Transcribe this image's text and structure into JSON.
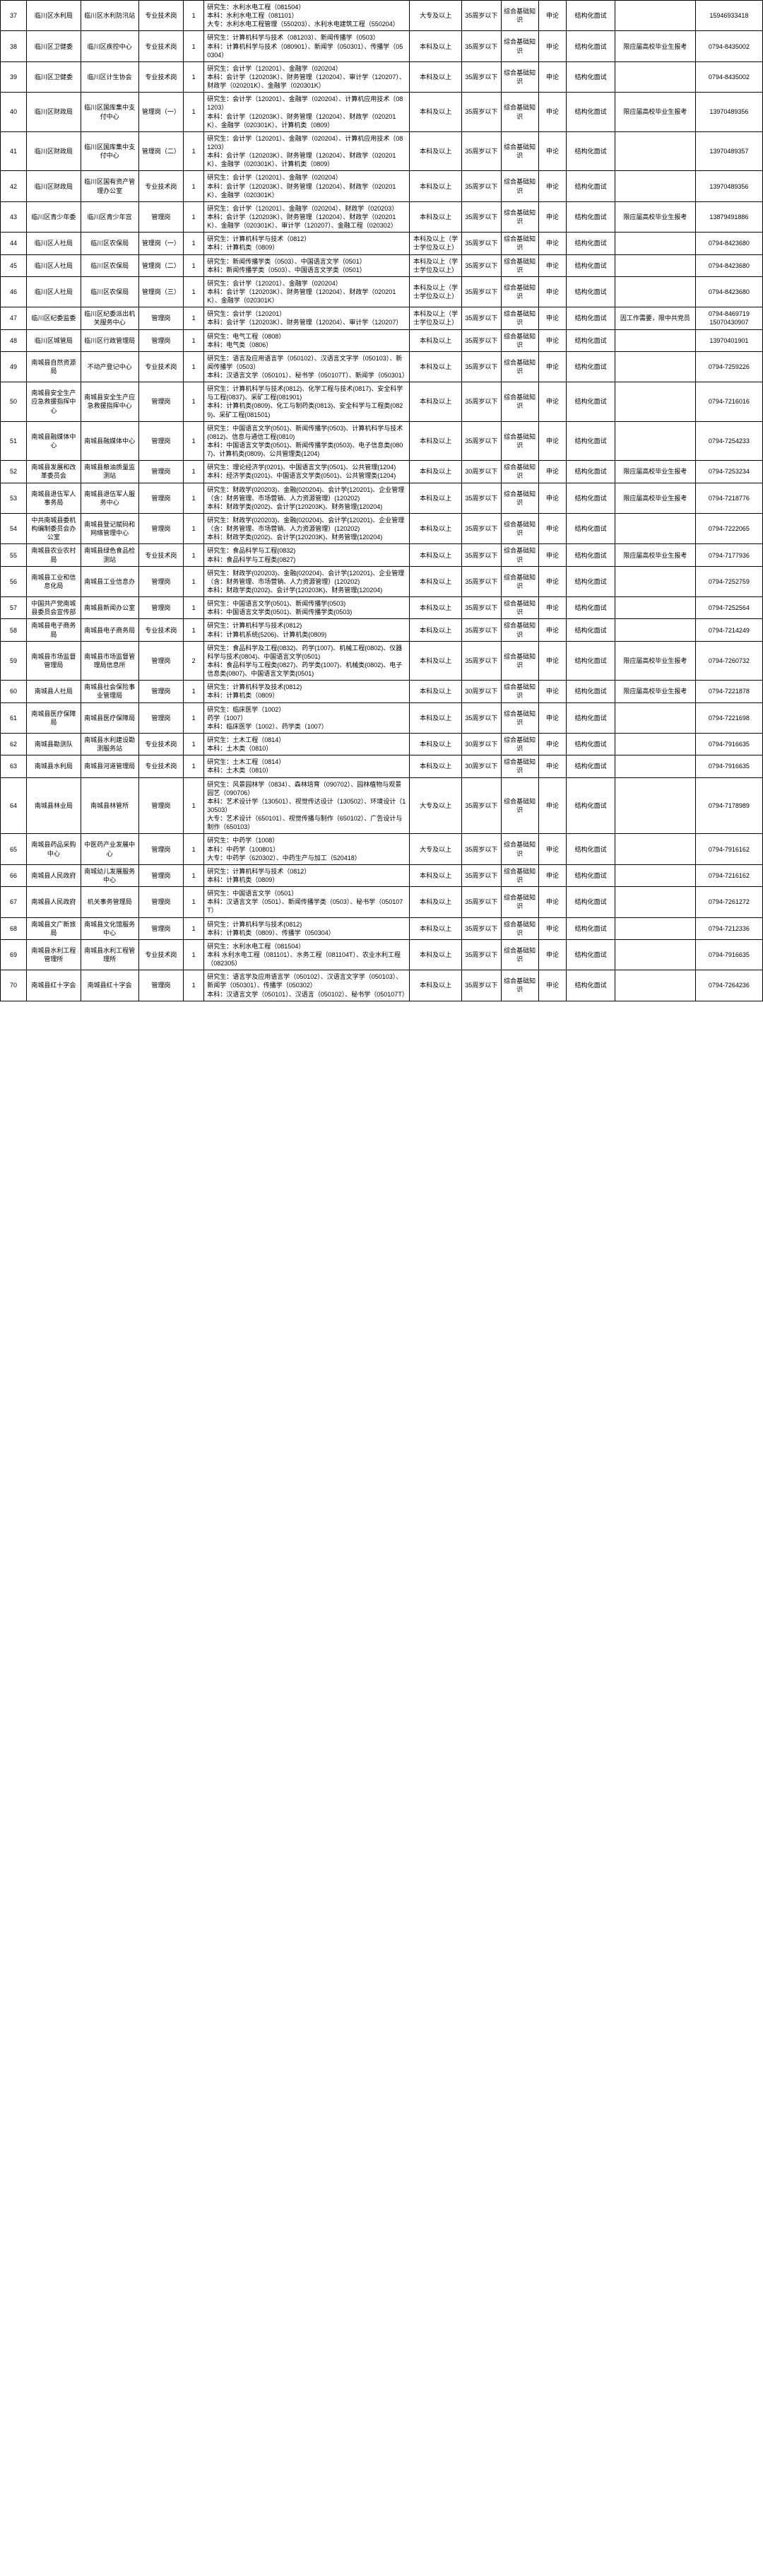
{
  "rows": [
    {
      "n": "37",
      "dept": "临川区水利局",
      "unit": "临川区水利防汛站",
      "post": "专业技术岗",
      "cnt": "1",
      "req": "研究生：水利水电工程（081504）\n本科：水利水电工程（081101）\n大专：水利水电工程管理（550203）、水利水电建筑工程（550204）",
      "edu": "大专及以上",
      "age": "35周岁以下",
      "exam": "综合基础知识",
      "way": "申论",
      "iv": "结构化面试",
      "note": "",
      "tel": "15946933418"
    },
    {
      "n": "38",
      "dept": "临川区卫健委",
      "unit": "临川区疾控中心",
      "post": "专业技术岗",
      "cnt": "1",
      "req": "研究生：计算机科学与技术（081203）、新闻传播学（0503）\n本科：计算机科学与技术（080901）、新闻学（050301）、传播学（050304）",
      "edu": "本科及以上",
      "age": "35周岁以下",
      "exam": "综合基础知识",
      "way": "申论",
      "iv": "结构化面试",
      "note": "限应届高校毕业生报考",
      "tel": "0794-8435002"
    },
    {
      "n": "39",
      "dept": "临川区卫健委",
      "unit": "临川区计生协会",
      "post": "专业技术岗",
      "cnt": "1",
      "req": "研究生：会计学（120201）、金融学（020204）\n本科：会计学（120203K）、财务管理（120204）、审计学（120207）、财政学（020201K）、金融学（020301K）",
      "edu": "本科及以上",
      "age": "35周岁以下",
      "exam": "综合基础知识",
      "way": "申论",
      "iv": "结构化面试",
      "note": "",
      "tel": "0794-8435002"
    },
    {
      "n": "40",
      "dept": "临川区财政局",
      "unit": "临川区国库集中支付中心",
      "post": "管理岗（一）",
      "cnt": "1",
      "req": "研究生：会计学（120201）、金融学（020204）、计算机应用技术（081203）\n本科：会计学（120203K）、财务管理（120204）、财政学（020201K）、金融学（020301K）、计算机类（0809）",
      "edu": "本科及以上",
      "age": "35周岁以下",
      "exam": "综合基础知识",
      "way": "申论",
      "iv": "结构化面试",
      "note": "限应届高校毕业生报考",
      "tel": "13970489356"
    },
    {
      "n": "41",
      "dept": "临川区财政局",
      "unit": "临川区国库集中支付中心",
      "post": "管理岗（二）",
      "cnt": "1",
      "req": "研究生：会计学（120201）、金融学（020204）、计算机应用技术（081203）\n本科：会计学（120203K）、财务管理（120204）、财政学（020201K）、金融学（020301K）、计算机类（0809）",
      "edu": "本科及以上",
      "age": "35周岁以下",
      "exam": "综合基础知识",
      "way": "申论",
      "iv": "结构化面试",
      "note": "",
      "tel": "13970489357"
    },
    {
      "n": "42",
      "dept": "临川区财政局",
      "unit": "临川区国有资产管理办公室",
      "post": "专业技术岗",
      "cnt": "1",
      "req": "研究生：会计学（120201）、金融学（020204）\n本科：会计学（120203K）、财务管理（120204）、财政学（020201K）、金融学（020301K）",
      "edu": "本科及以上",
      "age": "35周岁以下",
      "exam": "综合基础知识",
      "way": "申论",
      "iv": "结构化面试",
      "note": "",
      "tel": "13970489356"
    },
    {
      "n": "43",
      "dept": "临川区青少年委",
      "unit": "临川区青少年宫",
      "post": "管理岗",
      "cnt": "1",
      "req": "研究生：会计学（120201）、金融学（020204）、财政学（020203）\n本科：会计学（120203K）、财务管理（120204）、财政学（020201K）、金融学（020301K）、审计学（120207）、金融工程（020302）",
      "edu": "本科及以上",
      "age": "35周岁以下",
      "exam": "综合基础知识",
      "way": "申论",
      "iv": "结构化面试",
      "note": "限应届高校毕业生报考",
      "tel": "13879491886"
    },
    {
      "n": "44",
      "dept": "临川区人社局",
      "unit": "临川区农保局",
      "post": "管理岗（一）",
      "cnt": "1",
      "req": "研究生：计算机科学与技术（0812）\n本科：计算机类（0809）",
      "edu": "本科及以上（学士学位及以上）",
      "age": "35周岁以下",
      "exam": "综合基础知识",
      "way": "申论",
      "iv": "结构化面试",
      "note": "",
      "tel": "0794-8423680"
    },
    {
      "n": "45",
      "dept": "临川区人社局",
      "unit": "临川区农保局",
      "post": "管理岗（二）",
      "cnt": "1",
      "req": "研究生：新闻传播学类（0503）、中国语言文学（0501）\n本科：新闻传播学类（0503）、中国语言文学类（0501）",
      "edu": "本科及以上（学士学位及以上）",
      "age": "35周岁以下",
      "exam": "综合基础知识",
      "way": "申论",
      "iv": "结构化面试",
      "note": "",
      "tel": "0794-8423680"
    },
    {
      "n": "46",
      "dept": "临川区人社局",
      "unit": "临川区农保局",
      "post": "管理岗（三）",
      "cnt": "1",
      "req": "研究生：会计学（120201）、金融学（020204）\n本科：会计学（120203K）、财务管理（120204）、财政学（020201K）、金融学（020301K）",
      "edu": "本科及以上（学士学位及以上）",
      "age": "35周岁以下",
      "exam": "综合基础知识",
      "way": "申论",
      "iv": "结构化面试",
      "note": "",
      "tel": "0794-8423680"
    },
    {
      "n": "47",
      "dept": "临川区纪委监委",
      "unit": "临川区纪委派出机关服务中心",
      "post": "管理岗",
      "cnt": "1",
      "req": "研究生：会计学（120201）\n本科：会计学（120203K）、财务管理（120204）、审计学（120207）",
      "edu": "本科及以上（学士学位及以上）",
      "age": "35周岁以下",
      "exam": "综合基础知识",
      "way": "申论",
      "iv": "结构化面试",
      "note": "因工作需要，限中共党员",
      "tel": "0794-8469719\n15070430907"
    },
    {
      "n": "48",
      "dept": "临川区城管局",
      "unit": "临川区行政管理局",
      "post": "管理岗",
      "cnt": "1",
      "req": "研究生：电气工程（0808）\n本科：电气类（0806）",
      "edu": "本科及以上",
      "age": "35周岁以下",
      "exam": "综合基础知识",
      "way": "申论",
      "iv": "结构化面试",
      "note": "",
      "tel": "13970401901"
    },
    {
      "n": "49",
      "dept": "南城县自然资源局",
      "unit": "不动产登记中心",
      "post": "专业技术岗",
      "cnt": "1",
      "req": "研究生：语言及应用语言学（050102）、汉语言文字学（050103）、新闻传播学（0503）\n本科：汉语言文学（050101）、秘书学（050107T）、新闻学（050301）",
      "edu": "本科及以上",
      "age": "35周岁以下",
      "exam": "综合基础知识",
      "way": "申论",
      "iv": "结构化面试",
      "note": "",
      "tel": "0794-7259226"
    },
    {
      "n": "50",
      "dept": "南城县安全生产应急救援指挥中心",
      "unit": "南城县安全生产应急救援指挥中心",
      "post": "管理岗",
      "cnt": "1",
      "req": "研究生：计算机科学与技术(0812)、化学工程与技术(0817)、安全科学与工程(0837)、采矿工程(081901)\n本科：计算机类(0809)、化工与制药类(0813)、安全科学与工程类(0829)、采矿工程(081501)",
      "edu": "本科及以上",
      "age": "35周岁以下",
      "exam": "综合基础知识",
      "way": "申论",
      "iv": "结构化面试",
      "note": "",
      "tel": "0794-7216016"
    },
    {
      "n": "51",
      "dept": "南城县融媒体中心",
      "unit": "南城县融媒体中心",
      "post": "管理岗",
      "cnt": "1",
      "req": "研究生：中国语言文学(0501)、新闻传播学(0503)、计算机科学与技术(0812)、信息与通信工程(0810)\n本科：中国语言文学类(0501)、新闻传播学类(0503)、电子信息类(0807)、计算机类(0809)、公共管理类(1204)",
      "edu": "本科及以上",
      "age": "35周岁以下",
      "exam": "综合基础知识",
      "way": "申论",
      "iv": "结构化面试",
      "note": "",
      "tel": "0794-7254233"
    },
    {
      "n": "52",
      "dept": "南城县发展和改革委员会",
      "unit": "南城县粮油质量监测站",
      "post": "管理岗",
      "cnt": "1",
      "req": "研究生：理论经济学(0201)、中国语言文学(0501)、公共管理(1204)\n本科：经济学类(0201)、中国语言文学类(0501)、公共管理类(1204)",
      "edu": "本科及以上",
      "age": "30周岁以下",
      "exam": "综合基础知识",
      "way": "申论",
      "iv": "结构化面试",
      "note": "限应届高校毕业生报考",
      "tel": "0794-7253234"
    },
    {
      "n": "53",
      "dept": "南城县退伍军人事务局",
      "unit": "南城县退伍军人服务中心",
      "post": "管理岗",
      "cnt": "1",
      "req": "研究生：财政学(020203)、金融(020204)、会计学(120201)、企业管理（含：财务管理、市场营销、人力资源管理）(120202)\n本科：财政学类(0202)、会计学(120203K)、财务管理(120204)",
      "edu": "本科及以上",
      "age": "35周岁以下",
      "exam": "综合基础知识",
      "way": "申论",
      "iv": "结构化面试",
      "note": "限应届高校毕业生报考",
      "tel": "0794-7218776"
    },
    {
      "n": "54",
      "dept": "中共南城县委机构编制委员会办公室",
      "unit": "南城县登记赋码和网络管理中心",
      "post": "管理岗",
      "cnt": "1",
      "req": "研究生：财政学(020203)、金融(020204)、会计学(120201)、企业管理（含：财务管理、市场营销、人力资源管理）(120202)\n本科：财政学类(0202)、会计学(120203K)、财务管理(120204)",
      "edu": "本科及以上",
      "age": "35周岁以下",
      "exam": "综合基础知识",
      "way": "申论",
      "iv": "结构化面试",
      "note": "",
      "tel": "0794-7222065"
    },
    {
      "n": "55",
      "dept": "南城县农业农村局",
      "unit": "南城县绿色食品检测站",
      "post": "专业技术岗",
      "cnt": "1",
      "req": "研究生：食品科学与工程(0832)\n本科：食品科学与工程类(0827)",
      "edu": "本科及以上",
      "age": "35周岁以下",
      "exam": "综合基础知识",
      "way": "申论",
      "iv": "结构化面试",
      "note": "限应届高校毕业生报考",
      "tel": "0794-7177936"
    },
    {
      "n": "56",
      "dept": "南城县工业和信息化局",
      "unit": "南城县工业信息办",
      "post": "管理岗",
      "cnt": "1",
      "req": "研究生：财政学(020203)、金融(020204)、会计学(120201)、企业管理（含：财务管理、市场营销、人力资源管理）(120202)\n本科：财政学类(0202)、会计学(120203K)、财务管理(120204)",
      "edu": "本科及以上",
      "age": "35周岁以下",
      "exam": "综合基础知识",
      "way": "申论",
      "iv": "结构化面试",
      "note": "",
      "tel": "0794-7252759"
    },
    {
      "n": "57",
      "dept": "中国共产党南城县委员会宣传部",
      "unit": "南城县新闻办公室",
      "post": "管理岗",
      "cnt": "1",
      "req": "研究生：中国语言文学(0501)、新闻传播学(0503)\n本科：中国语言文学类(0501)、新闻传播学类(0503)",
      "edu": "本科及以上",
      "age": "35周岁以下",
      "exam": "综合基础知识",
      "way": "申论",
      "iv": "结构化面试",
      "note": "",
      "tel": "0794-7252564"
    },
    {
      "n": "58",
      "dept": "南城县电子商务局",
      "unit": "南城县电子商务局",
      "post": "专业技术岗",
      "cnt": "1",
      "req": "研究生：计算机科学与技术(0812)\n本科：计算机系统(5206)、计算机类(0809)",
      "edu": "本科及以上",
      "age": "35周岁以下",
      "exam": "综合基础知识",
      "way": "申论",
      "iv": "结构化面试",
      "note": "",
      "tel": "0794-7214249"
    },
    {
      "n": "59",
      "dept": "南城县市场监督管理局",
      "unit": "南城县市场监督管理局信息所",
      "post": "管理岗",
      "cnt": "2",
      "req": "研究生：食品科学及工程(0832)、药学(1007)、机械工程(0802)、仪器科学与技术(0804)、中国语言文学(0501)\n本科：食品科学与工程类(0827)、药学类(1007)、机械类(0802)、电子信息类(0807)、中国语言文学类(0501)",
      "edu": "本科及以上",
      "age": "35周岁以下",
      "exam": "综合基础知识",
      "way": "申论",
      "iv": "结构化面试",
      "note": "限应届高校毕业生报考",
      "tel": "0794-7260732"
    },
    {
      "n": "60",
      "dept": "南城县人社局",
      "unit": "南城县社会保险事业管理局",
      "post": "管理岗",
      "cnt": "1",
      "req": "研究生：计算机科学及技术(0812)\n本科：计算机类（0809）",
      "edu": "本科及以上",
      "age": "30周岁以下",
      "exam": "综合基础知识",
      "way": "申论",
      "iv": "结构化面试",
      "note": "限应届高校毕业生报考",
      "tel": "0794-7221878"
    },
    {
      "n": "61",
      "dept": "南城县医疗保障局",
      "unit": "南城县医疗保障局",
      "post": "管理岗",
      "cnt": "1",
      "req": "研究生：临床医学（1002）\n药学（1007）\n本科：临床医学（1002）、药学类（1007）",
      "edu": "本科及以上",
      "age": "35周岁以下",
      "exam": "综合基础知识",
      "way": "申论",
      "iv": "结构化面试",
      "note": "",
      "tel": "0794-7221698"
    },
    {
      "n": "62",
      "dept": "南城县勘测队",
      "unit": "南城县水利建设勘测服务站",
      "post": "专业技术岗",
      "cnt": "1",
      "req": "研究生：土木工程（0814）\n本科：土木类（0810）",
      "edu": "本科及以上",
      "age": "30周岁以下",
      "exam": "综合基础知识",
      "way": "申论",
      "iv": "结构化面试",
      "note": "",
      "tel": "0794-7916635"
    },
    {
      "n": "63",
      "dept": "南城县水利局",
      "unit": "南城县河道管理局",
      "post": "专业技术岗",
      "cnt": "1",
      "req": "研究生：土木工程（0814）\n本科：土木类（0810）",
      "edu": "本科及以上",
      "age": "30周岁以下",
      "exam": "综合基础知识",
      "way": "申论",
      "iv": "结构化面试",
      "note": "",
      "tel": "0794-7916635"
    },
    {
      "n": "64",
      "dept": "南城县林业局",
      "unit": "南城县林管所",
      "post": "管理岗",
      "cnt": "1",
      "req": "研究生：风景园林学（0834）、森林培育（090702）、园林植物与观景园艺（090706）\n本科：艺术设计学（130501）、视觉传达设计（130502）、环境设计（130503）\n大专：艺术设计（650101）、视觉传播与制作（650102）、广告设计与制作（650103）",
      "edu": "大专及以上",
      "age": "35周岁以下",
      "exam": "综合基础知识",
      "way": "申论",
      "iv": "结构化面试",
      "note": "",
      "tel": "0794-7178989"
    },
    {
      "n": "65",
      "dept": "南城县药品采购中心",
      "unit": "中医药产业发展中心",
      "post": "管理岗",
      "cnt": "1",
      "req": "研究生：中药学（1008）\n本科：中药学（100801）\n大专：中药学（620302）、中药生产与加工（520418）",
      "edu": "大专及以上",
      "age": "35周岁以下",
      "exam": "综合基础知识",
      "way": "申论",
      "iv": "结构化面试",
      "note": "",
      "tel": "0794-7916162"
    },
    {
      "n": "66",
      "dept": "南城县人民政府",
      "unit": "南城幼儿发展服务中心",
      "post": "管理岗",
      "cnt": "1",
      "req": "研究生：计算机科学与技术（0812）\n本科：计算机类（0809）",
      "edu": "本科及以上",
      "age": "35周岁以下",
      "exam": "综合基础知识",
      "way": "申论",
      "iv": "结构化面试",
      "note": "",
      "tel": "0794-7216162"
    },
    {
      "n": "67",
      "dept": "南城县人民政府",
      "unit": "机关事务管理局",
      "post": "管理岗",
      "cnt": "1",
      "req": "研究生：中国语言文学（0501）\n本科：汉语言文学（0501）、新闻传播学类（0503）、秘书学（050107T）",
      "edu": "本科及以上",
      "age": "35周岁以下",
      "exam": "综合基础知识",
      "way": "申论",
      "iv": "结构化面试",
      "note": "",
      "tel": "0794-7261272"
    },
    {
      "n": "68",
      "dept": "南城县文广新旅局",
      "unit": "南城县文化馆服务中心",
      "post": "管理岗",
      "cnt": "1",
      "req": "研究生：计算机科学与技术(0812)\n本科：计算机类（0809）、传播学（050304）",
      "edu": "本科及以上",
      "age": "35周岁以下",
      "exam": "综合基础知识",
      "way": "申论",
      "iv": "结构化面试",
      "note": "",
      "tel": "0794-7212336"
    },
    {
      "n": "69",
      "dept": "南城县水利工程管理所",
      "unit": "南城县水利工程管理所",
      "post": "专业技术岗",
      "cnt": "1",
      "req": "研究生：水利水电工程（081504）\n本科 水利水电工程（081101）、水务工程（081104T）、农业水利工程（082305）",
      "edu": "本科及以上",
      "age": "35周岁以下",
      "exam": "综合基础知识",
      "way": "申论",
      "iv": "结构化面试",
      "note": "",
      "tel": "0794-7916635"
    },
    {
      "n": "70",
      "dept": "南城县红十字会",
      "unit": "南城县红十字会",
      "post": "管理岗",
      "cnt": "1",
      "req": "研究生：语言学及应用语言学（050102）、汉语言文字学（050103）、新闻学（050301）、传播学（050302）\n本科：汉语言文学（050101）、汉语言（050102）、秘书学（050107T）",
      "edu": "本科及以上",
      "age": "35周岁以下",
      "exam": "综合基础知识",
      "way": "申论",
      "iv": "结构化面试",
      "note": "",
      "tel": "0794-7264236"
    }
  ]
}
